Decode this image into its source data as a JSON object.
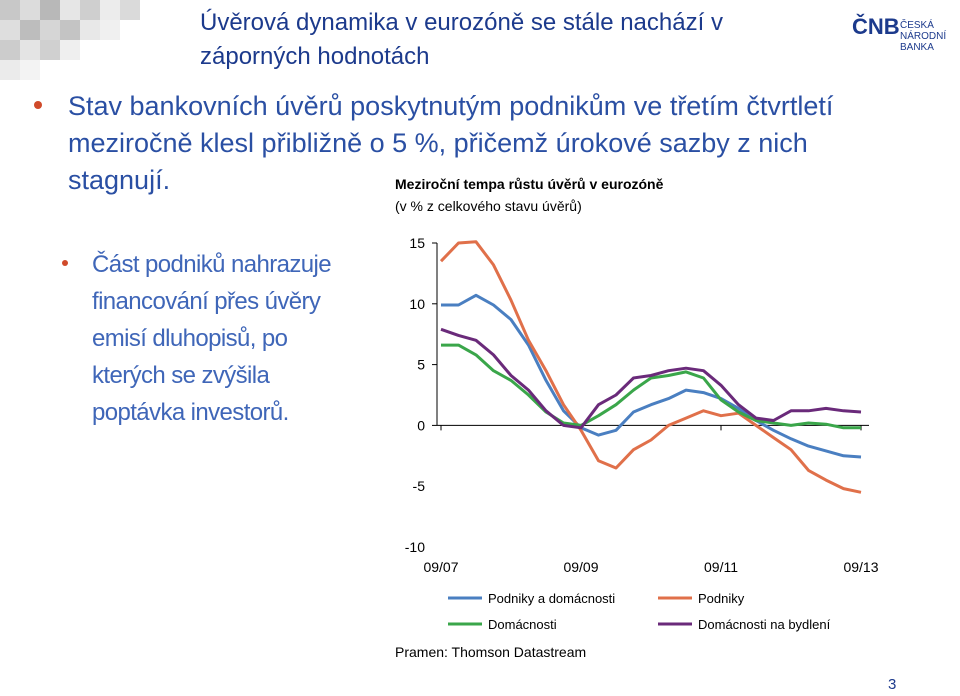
{
  "slide": {
    "title": "Úvěrová dynamika v eurozóně se stále nachází v záporných hodnotách",
    "logo": {
      "mark": "ČNB",
      "line1": "ČESKÁ",
      "line2": "NÁRODNÍ BANKA"
    },
    "bullets": [
      "Stav bankovních úvěrů poskytnutým podnikům ve třetím čtvrtletí meziročně klesl přibližně o 5 %, přičemž úrokové sazby z nich stagnují."
    ],
    "sub_bullets": [
      "Část podniků nahrazuje financování přes úvěry emisí dluhopisů, po kterých se zvýšila poptávka investorů."
    ],
    "page_number": "3"
  },
  "chart_data": {
    "type": "line",
    "title": "Meziroční tempa růstu úvěrů v eurozóně",
    "subtitle": "(v % z celkového stavu úvěrů)",
    "source": "Pramen: Thomson Datastream",
    "categories": [
      "09/07",
      null,
      null,
      null,
      null,
      null,
      null,
      null,
      "09/09",
      null,
      null,
      null,
      null,
      null,
      null,
      null,
      "09/11",
      null,
      null,
      null,
      null,
      null,
      null,
      null,
      "09/13"
    ],
    "series": [
      {
        "name": "Podniky a domácnosti",
        "color": "#4a7fc1",
        "values": [
          9.9,
          9.9,
          10.7,
          9.9,
          8.7,
          6.6,
          3.7,
          1.2,
          -0.2,
          -0.8,
          -0.4,
          1.1,
          1.7,
          2.2,
          2.9,
          2.7,
          2.2,
          1.4,
          0.4,
          -0.4,
          -1.1,
          -1.7,
          -2.1,
          -2.5,
          -2.6
        ]
      },
      {
        "name": "Podniky",
        "color": "#e0704a",
        "values": [
          13.5,
          15,
          15.1,
          13.2,
          10.3,
          7,
          4.5,
          1.7,
          -0.4,
          -2.9,
          -3.5,
          -2,
          -1.2,
          0,
          0.6,
          1.2,
          0.8,
          1,
          0,
          -1,
          -2,
          -3.7,
          -4.5,
          -5.2,
          -5.5
        ]
      },
      {
        "name": "Domácnosti",
        "color": "#3aa64a",
        "values": [
          6.6,
          6.6,
          5.8,
          4.5,
          3.7,
          2.5,
          1.1,
          0.2,
          0,
          0.8,
          1.7,
          2.9,
          3.9,
          4.1,
          4.4,
          3.9,
          2.1,
          1.1,
          0.4,
          0.2,
          0,
          0.2,
          0.1,
          -0.2,
          -0.2
        ]
      },
      {
        "name": "Domácnosti na bydlení",
        "color": "#6a2a7a",
        "values": [
          7.9,
          7.4,
          7,
          5.8,
          4.1,
          2.9,
          1.2,
          0,
          -0.2,
          1.7,
          2.5,
          3.9,
          4.1,
          4.5,
          4.7,
          4.5,
          3.3,
          1.7,
          0.6,
          0.4,
          1.2,
          1.2,
          1.4,
          1.2,
          1.1
        ]
      }
    ],
    "ylim": [
      -10,
      15
    ],
    "yticks": [
      -10,
      -5,
      0,
      5,
      10,
      15
    ]
  }
}
